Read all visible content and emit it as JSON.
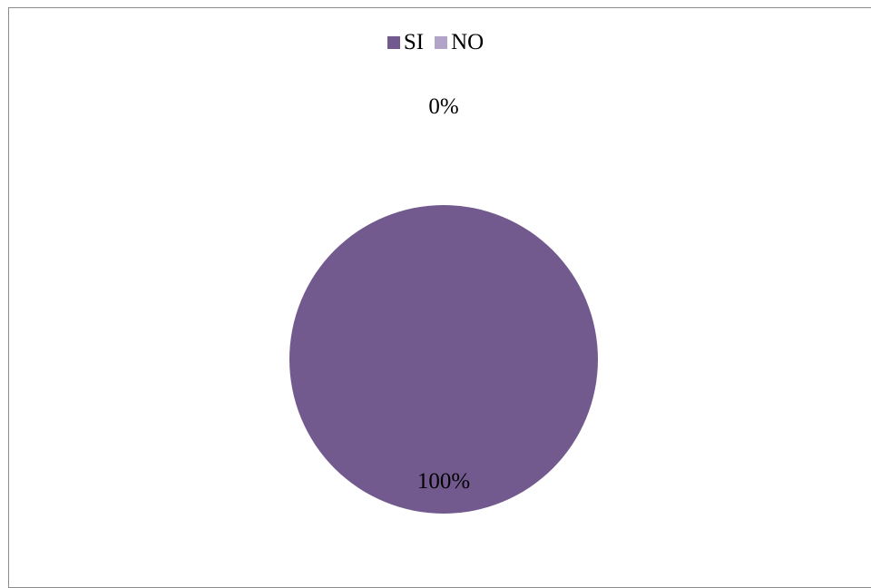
{
  "chart_data": {
    "type": "pie",
    "categories": [
      "SI",
      "NO"
    ],
    "values": [
      100,
      0
    ],
    "data_labels": [
      "100%",
      "0%"
    ],
    "colors": [
      "#72598E",
      "#B2A3C9"
    ],
    "title": "",
    "legend_position": "top",
    "grid": false
  }
}
